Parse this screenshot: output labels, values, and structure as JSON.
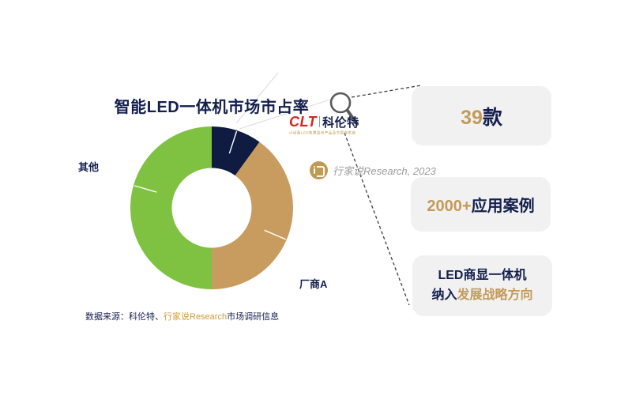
{
  "title": "智能LED一体机市场市占率",
  "colors": {
    "navy": "#141f4d",
    "accent_gold": "#c49a58",
    "slice_navy": "#101b42",
    "slice_gold": "#c89c5e",
    "slice_green": "#7fc241",
    "brand_red": "#d9251c",
    "box_bg": "#f1f1f2",
    "watermark_gray": "#9b9b9b"
  },
  "chart_data": {
    "type": "pie",
    "subtype": "donut",
    "title": "智能LED一体机市场市占率",
    "start_angle_deg": 0,
    "direction": "clockwise",
    "inner_radius_ratio": 0.49,
    "slices": [
      {
        "label": "科伦特",
        "value": 10,
        "color": "#101b42",
        "tick_angle_deg": 18,
        "labeled_on_chart": false
      },
      {
        "label": "厂商A",
        "value": 40,
        "color": "#c89c5e",
        "tick_angle_deg": 113,
        "labeled_on_chart": true
      },
      {
        "label": "其他",
        "value": 50,
        "color": "#7fc241",
        "tick_angle_deg": 286,
        "labeled_on_chart": true
      }
    ],
    "units": "percent (estimated from arc angles)"
  },
  "labels": {
    "others": "其他",
    "vendor_a": "厂商A"
  },
  "logo": {
    "brand": "CLT",
    "name": "科伦特",
    "tagline": "小间距LED智慧显示产品及方案提供商"
  },
  "watermark": {
    "text": "行家说Research, 2023"
  },
  "callouts": {
    "box1": {
      "accent": "39",
      "rest": "款"
    },
    "box2": {
      "accent": "2000+",
      "rest": "应用案例"
    },
    "box3": {
      "line1": "LED商显一体机",
      "line2_navy": "纳入",
      "line2_accent": "发展战略方向"
    }
  },
  "source": {
    "prefix": "数据来源：科伦特、",
    "highlight": "行家说Research",
    "suffix": "市场调研信息"
  }
}
